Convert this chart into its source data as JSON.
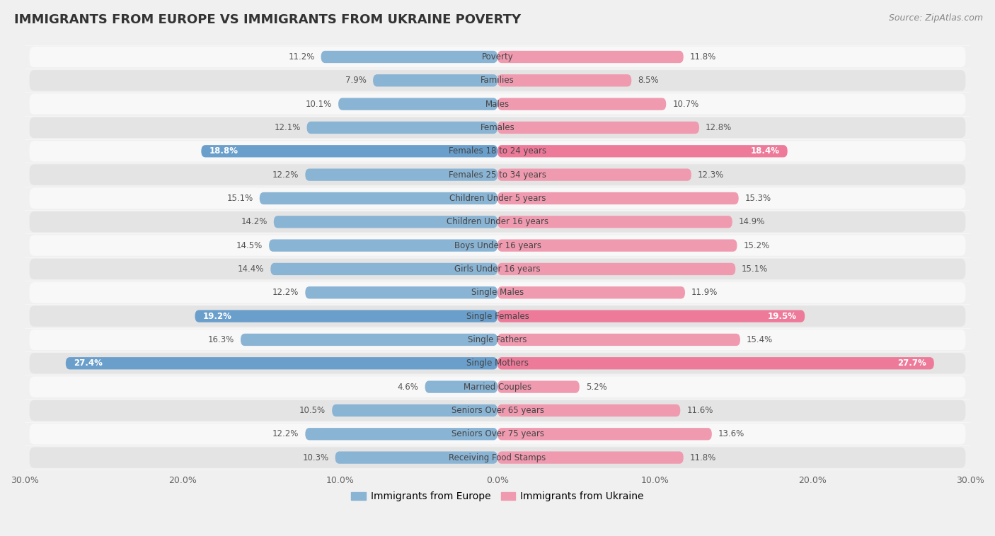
{
  "title": "IMMIGRANTS FROM EUROPE VS IMMIGRANTS FROM UKRAINE POVERTY",
  "source": "Source: ZipAtlas.com",
  "categories": [
    "Poverty",
    "Families",
    "Males",
    "Females",
    "Females 18 to 24 years",
    "Females 25 to 34 years",
    "Children Under 5 years",
    "Children Under 16 years",
    "Boys Under 16 years",
    "Girls Under 16 years",
    "Single Males",
    "Single Females",
    "Single Fathers",
    "Single Mothers",
    "Married Couples",
    "Seniors Over 65 years",
    "Seniors Over 75 years",
    "Receiving Food Stamps"
  ],
  "europe_values": [
    11.2,
    7.9,
    10.1,
    12.1,
    18.8,
    12.2,
    15.1,
    14.2,
    14.5,
    14.4,
    12.2,
    19.2,
    16.3,
    27.4,
    4.6,
    10.5,
    12.2,
    10.3
  ],
  "ukraine_values": [
    11.8,
    8.5,
    10.7,
    12.8,
    18.4,
    12.3,
    15.3,
    14.9,
    15.2,
    15.1,
    11.9,
    19.5,
    15.4,
    27.7,
    5.2,
    11.6,
    13.6,
    11.8
  ],
  "europe_color": "#8ab4d4",
  "ukraine_color": "#f09ab0",
  "europe_highlight_color": "#6a9fcc",
  "ukraine_highlight_color": "#ee7a9a",
  "highlight_rows": [
    4,
    11,
    13
  ],
  "background_color": "#f0f0f0",
  "row_bg_light": "#f8f8f8",
  "row_bg_dark": "#e4e4e4",
  "bar_height": 0.52,
  "xlim": 30.0,
  "legend_europe": "Immigrants from Europe",
  "legend_ukraine": "Immigrants from Ukraine",
  "label_color_normal": "#555555",
  "label_color_highlight": "#ffffff",
  "cat_label_fontsize": 8.5,
  "val_label_fontsize": 8.5,
  "title_fontsize": 13
}
